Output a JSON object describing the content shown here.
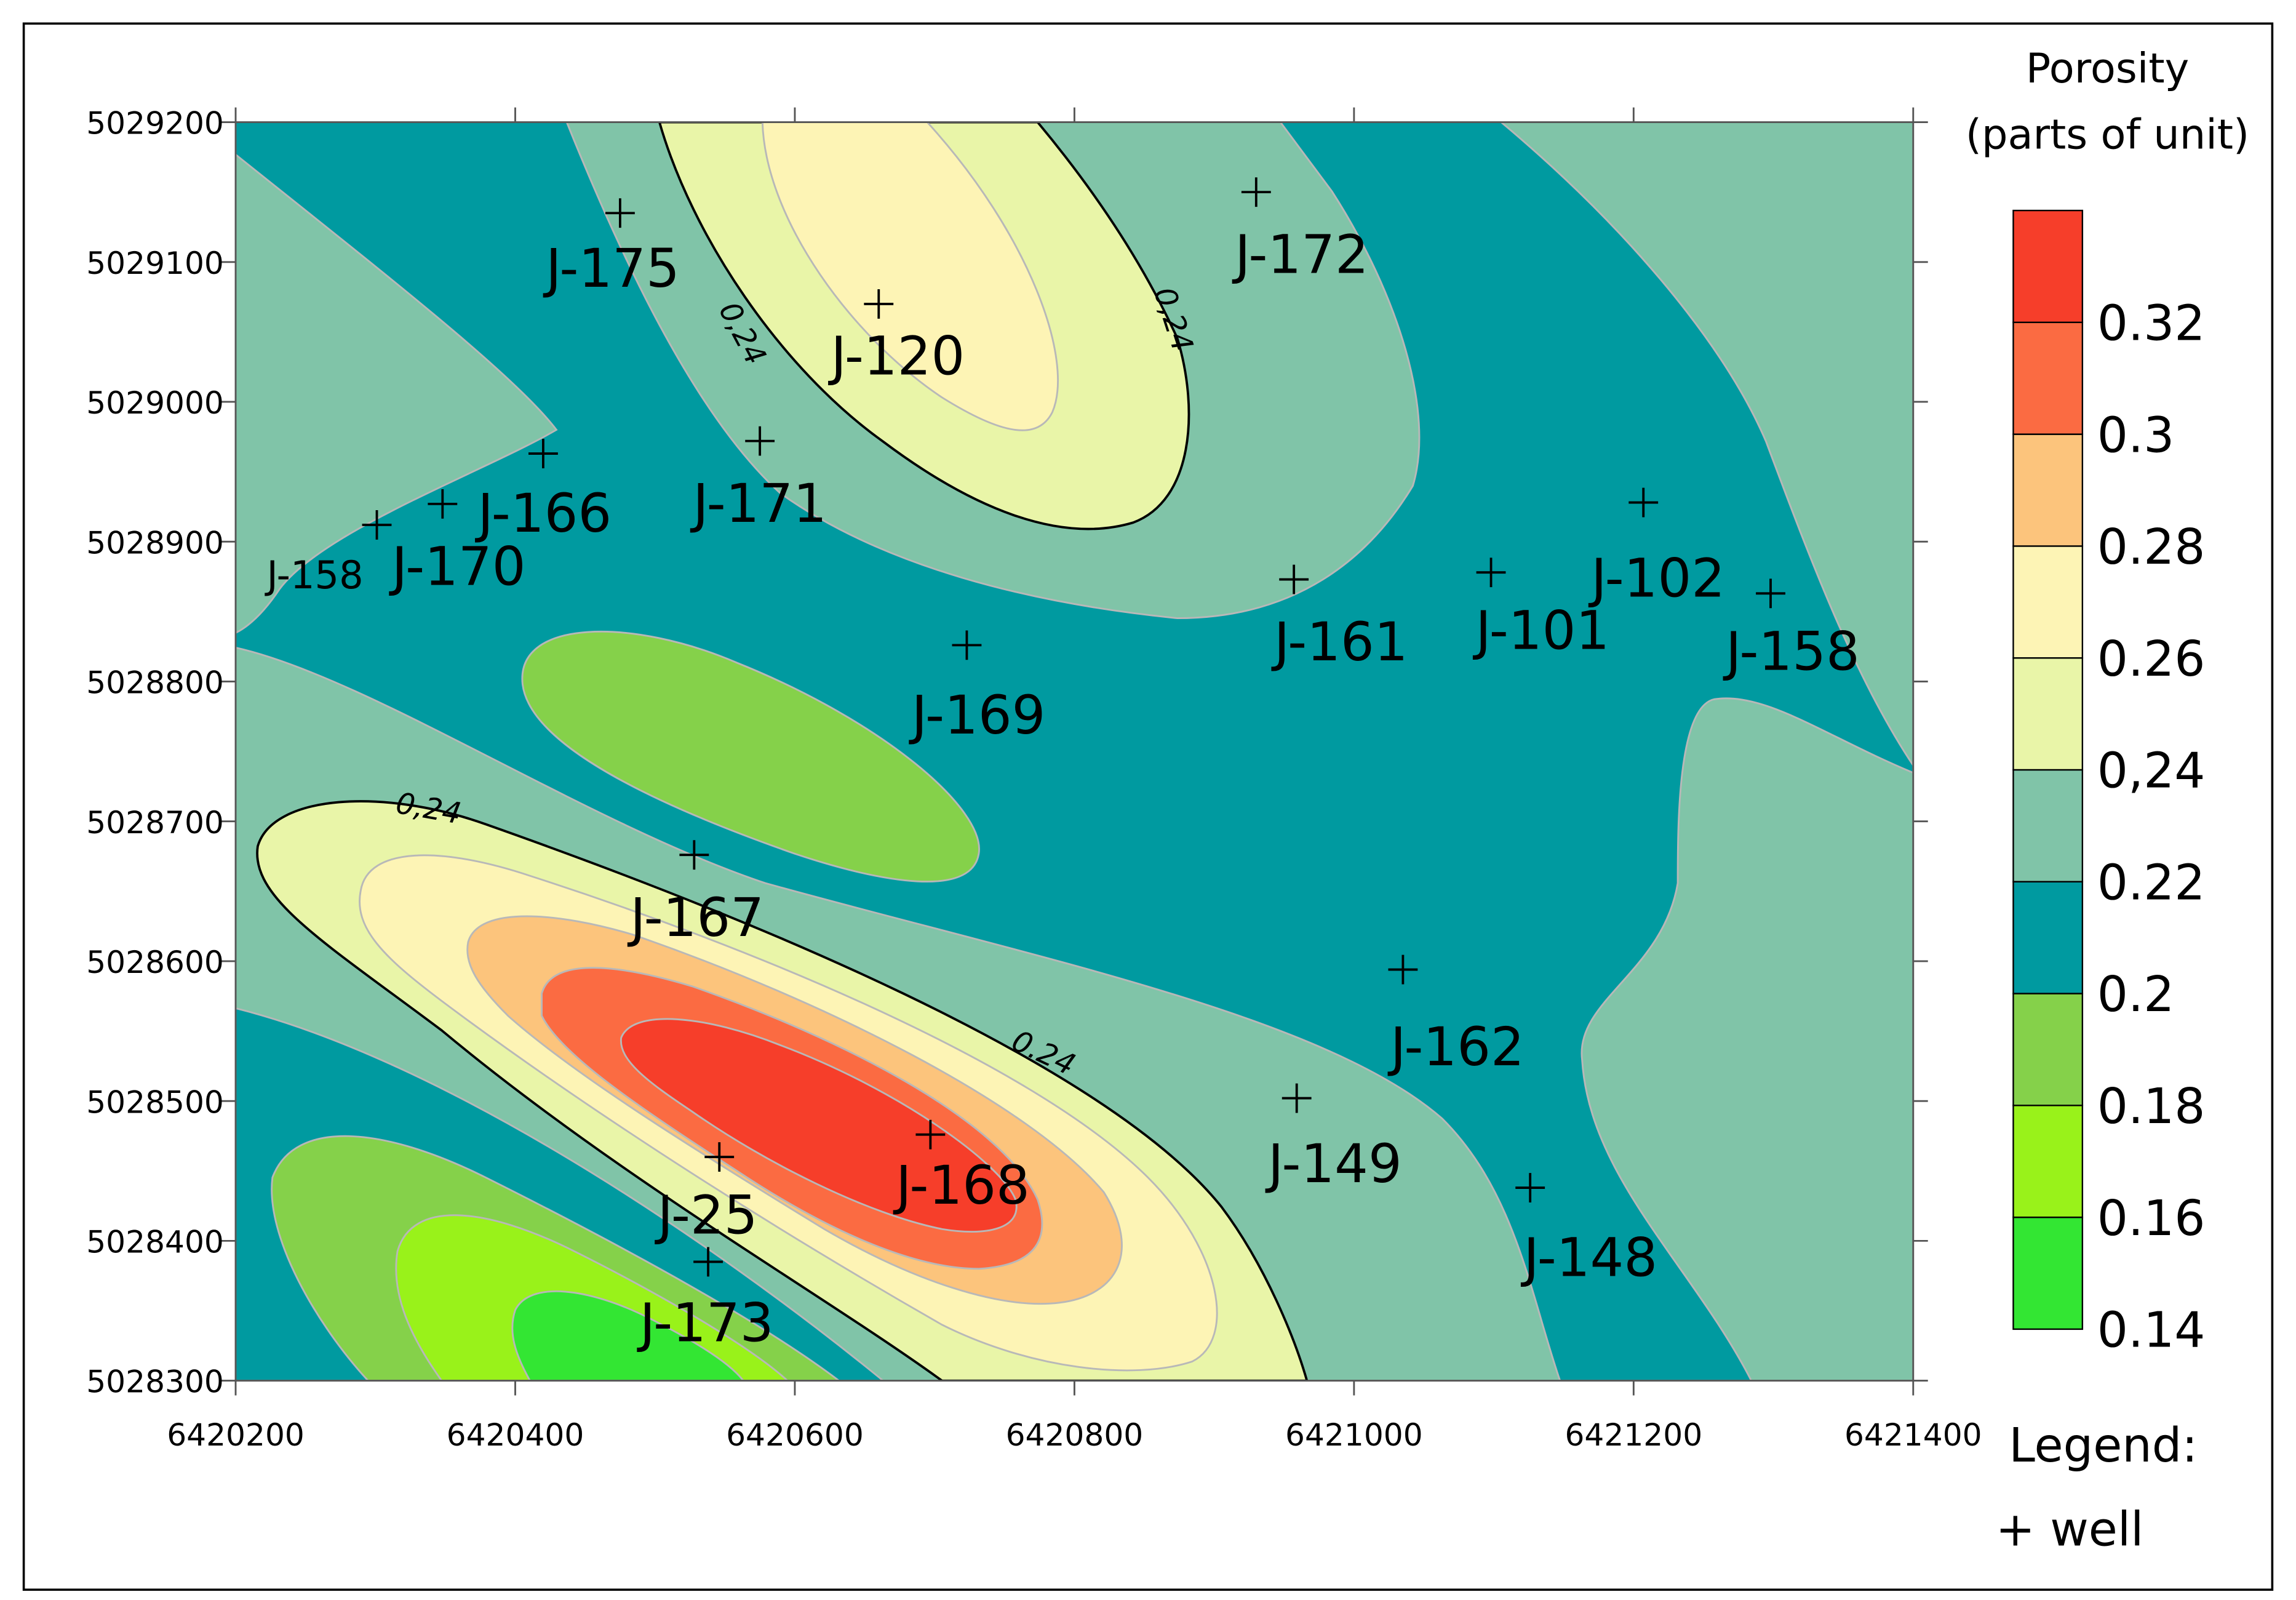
{
  "chart_data": {
    "type": "contour",
    "xlim": [
      6420200,
      6421400
    ],
    "ylim": [
      5028300,
      5029200
    ],
    "xticks": [
      6420200,
      6420400,
      6420600,
      6420800,
      6421000,
      6421200,
      6421400
    ],
    "yticks": [
      5028300,
      5028400,
      5028500,
      5028600,
      5028700,
      5028800,
      5028900,
      5029000,
      5029100,
      5029200
    ],
    "colorbar": {
      "title": [
        "Porosity",
        "(parts of unit)"
      ],
      "clim": [
        0.14,
        0.34
      ],
      "ticks": [
        0.14,
        0.16,
        0.18,
        0.2,
        0.22,
        {
          "value": 0.24,
          "label": "0,24"
        },
        0.26,
        0.28,
        0.3,
        0.32
      ],
      "colors": [
        "#33e633",
        "#99f21a",
        "#85d14a",
        "#009aa0",
        "#80c4a8",
        "#e9f5a8",
        "#fdf4b5",
        "#fcc47c",
        "#fb6b42",
        "#f63e2a"
      ]
    },
    "contour_labels": [
      "0,24",
      "0,24",
      "0,24",
      "0.24"
    ],
    "wells": {
      "names": [
        "J-175",
        "J-120",
        "J-172",
        "J-171",
        "J-166",
        "J-170",
        "J-158",
        "J-169",
        "J-161",
        "J-101",
        "J-102",
        "J-158",
        "J-167",
        "J-162",
        "J-149",
        "J-168",
        "J-25",
        "J-173",
        "J-148"
      ],
      "x": [
        6420475,
        6420660,
        6420930,
        6420575,
        6420420,
        6420348,
        6420301,
        6420723,
        6420957,
        6421098,
        6421207,
        6421298,
        6420528,
        6421035,
        6420959,
        6420697,
        6420546,
        6420538,
        6421126
      ],
      "y": [
        5029135,
        5029070,
        5029150,
        5028972,
        5028963,
        5028927,
        5028912,
        5028826,
        5028873,
        5028878,
        5028928,
        5028863,
        5028676,
        5028594,
        5028502,
        5028476,
        5028460,
        5028385,
        5028438
      ],
      "color": "#000000"
    },
    "legend_title": "Legend:",
    "legend_items": [
      "+ well"
    ]
  }
}
